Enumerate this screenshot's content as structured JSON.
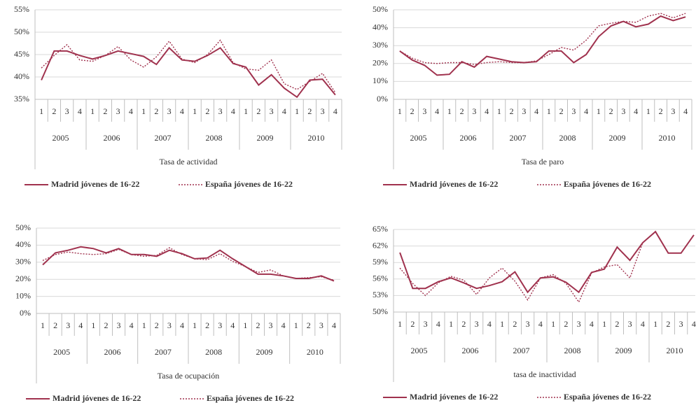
{
  "chart_data": [
    {
      "type": "line",
      "x_label": "Tasa de actividad",
      "categories": [
        "1",
        "2",
        "3",
        "4",
        "1",
        "2",
        "3",
        "4",
        "1",
        "2",
        "3",
        "4",
        "1",
        "2",
        "3",
        "4",
        "1",
        "2",
        "3",
        "4",
        "1",
        "2",
        "3",
        "4"
      ],
      "groups": [
        "2005",
        "2006",
        "2007",
        "2008",
        "2009",
        "2010"
      ],
      "ylim": [
        35,
        55
      ],
      "yticks": [
        {
          "value": 35,
          "label": "35%"
        },
        {
          "value": 40,
          "label": "40%"
        },
        {
          "value": 45,
          "label": "45%"
        },
        {
          "value": 50,
          "label": "50%"
        },
        {
          "value": 55,
          "label": "55%"
        }
      ],
      "grid": true,
      "series": [
        {
          "name": "Madrid jóvenes de 16-22",
          "color": "#a0324e",
          "dash": "solid",
          "values": [
            39.3,
            45.8,
            45.8,
            44.8,
            44,
            44.8,
            45.8,
            45.2,
            44.6,
            42.8,
            46.5,
            43.8,
            43.5,
            44.8,
            46.5,
            43,
            42.2,
            38.2,
            40.5,
            37.5,
            35.5,
            39.3,
            39.5,
            36
          ]
        },
        {
          "name": "España jóvenes de 16-22",
          "color": "#a0324e",
          "dash": "dotted",
          "values": [
            42,
            44.8,
            47.2,
            43.8,
            43.5,
            44.8,
            46.8,
            43.8,
            42.2,
            44.5,
            48,
            44,
            43.2,
            45,
            48.2,
            43.2,
            41.8,
            41.5,
            43.8,
            38.5,
            37.2,
            39,
            40.8,
            36.5
          ]
        }
      ]
    },
    {
      "type": "line",
      "x_label": "Tasa de paro",
      "categories": [
        "1",
        "2",
        "3",
        "4",
        "1",
        "2",
        "3",
        "4",
        "1",
        "2",
        "3",
        "4",
        "1",
        "2",
        "3",
        "4",
        "1",
        "2",
        "3",
        "4",
        "1",
        "2",
        "3",
        "4"
      ],
      "groups": [
        "2005",
        "2006",
        "2007",
        "2008",
        "2009",
        "2010"
      ],
      "ylim": [
        0,
        50
      ],
      "yticks": [
        {
          "value": 0,
          "label": "0%"
        },
        {
          "value": 10,
          "label": "10%"
        },
        {
          "value": 20,
          "label": "20%"
        },
        {
          "value": 30,
          "label": "30%"
        },
        {
          "value": 40,
          "label": "40%"
        },
        {
          "value": 50,
          "label": "50%"
        }
      ],
      "grid": true,
      "series": [
        {
          "name": "Madrid jóvenes de 16-22",
          "color": "#a0324e",
          "dash": "solid",
          "values": [
            27,
            22,
            19,
            13.5,
            14,
            21,
            18,
            24,
            22.5,
            21,
            20.5,
            21,
            27,
            27,
            20.5,
            25,
            35,
            41,
            43.5,
            40.5,
            42,
            46.5,
            44,
            46
          ]
        },
        {
          "name": "España jóvenes de 16-22",
          "color": "#a0324e",
          "dash": "dotted",
          "values": [
            27,
            23,
            20.5,
            20,
            20.5,
            20.5,
            19.5,
            20.5,
            21,
            20.5,
            20.5,
            21.5,
            25,
            29,
            27.5,
            33,
            41,
            42.5,
            43.5,
            43,
            46.5,
            48,
            45.5,
            48
          ]
        }
      ]
    },
    {
      "type": "line",
      "x_label": "Tasa de ocupación",
      "categories": [
        "1",
        "2",
        "3",
        "4",
        "1",
        "2",
        "3",
        "4",
        "1",
        "2",
        "3",
        "4",
        "1",
        "2",
        "3",
        "4",
        "1",
        "2",
        "3",
        "4",
        "1",
        "2",
        "3",
        "4"
      ],
      "groups": [
        "2005",
        "2006",
        "2007",
        "2008",
        "2009",
        "2010"
      ],
      "ylim": [
        0,
        50
      ],
      "yticks": [
        {
          "value": 0,
          "label": "0%"
        },
        {
          "value": 10,
          "label": "10%"
        },
        {
          "value": 20,
          "label": "20%"
        },
        {
          "value": 30,
          "label": "30%"
        },
        {
          "value": 40,
          "label": "40%"
        },
        {
          "value": 50,
          "label": "50%"
        }
      ],
      "grid": true,
      "series": [
        {
          "name": "Madrid jóvenes de 16-22",
          "color": "#a0324e",
          "dash": "solid",
          "values": [
            28.5,
            35.5,
            37,
            39,
            38,
            35.5,
            38,
            34.5,
            34.5,
            33.5,
            37,
            35,
            32,
            32.5,
            37,
            32,
            27.5,
            23,
            23,
            22,
            20.5,
            20.5,
            22,
            19
          ]
        },
        {
          "name": "España jóvenes de 16-22",
          "color": "#a0324e",
          "dash": "dotted",
          "values": [
            31,
            34.5,
            36,
            35,
            34.5,
            35,
            37.5,
            34.5,
            33.5,
            34,
            38.5,
            34.5,
            32,
            31.5,
            35,
            30.5,
            27.5,
            24,
            25.5,
            22,
            20.5,
            21,
            21.5,
            19.5
          ]
        }
      ]
    },
    {
      "type": "line",
      "x_label": "tasa de inactividad",
      "categories": [
        "1",
        "2",
        "3",
        "4",
        "1",
        "2",
        "3",
        "4",
        "1",
        "2",
        "3",
        "4",
        "1",
        "2",
        "3",
        "4",
        "1",
        "2",
        "3",
        "4",
        "1",
        "2",
        "3",
        "4"
      ],
      "groups": [
        "2005",
        "2006",
        "2007",
        "2008",
        "2009",
        "2010"
      ],
      "ylim": [
        50,
        65
      ],
      "yticks": [
        {
          "value": 50,
          "label": "50%"
        },
        {
          "value": 53,
          "label": "53%"
        },
        {
          "value": 56,
          "label": "56%"
        },
        {
          "value": 59,
          "label": "59%"
        },
        {
          "value": 62,
          "label": "62%"
        },
        {
          "value": 65,
          "label": "65%"
        }
      ],
      "grid": true,
      "series": [
        {
          "name": "Madrid jóvenes de 16-22",
          "color": "#a0324e",
          "dash": "solid",
          "values": [
            60.8,
            54.3,
            54.3,
            55.5,
            56.2,
            55.3,
            54.3,
            54.8,
            55.5,
            57.3,
            53.6,
            56.2,
            56.4,
            55.4,
            53.6,
            57.2,
            57.8,
            61.8,
            59.4,
            62.6,
            64.6,
            60.7,
            60.7,
            64
          ]
        },
        {
          "name": "España jóvenes de 16-22",
          "color": "#a0324e",
          "dash": "dotted",
          "values": [
            58,
            55.2,
            53,
            55.3,
            56.5,
            55.8,
            53.2,
            56.2,
            58,
            55.6,
            52.2,
            56.2,
            56.8,
            55.2,
            51.8,
            57.1,
            58.2,
            58.6,
            56.2,
            62.6,
            64.6,
            60.7,
            60.7,
            64
          ]
        }
      ]
    }
  ]
}
